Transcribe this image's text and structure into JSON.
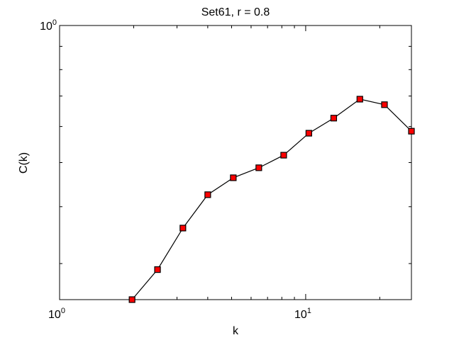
{
  "chart_data": {
    "type": "line",
    "title": "Set61, r = 0.8",
    "xlabel": "k",
    "ylabel": "C(k)",
    "x": [
      1.97,
      2.5,
      3.17,
      4.0,
      5.08,
      6.45,
      8.14,
      10.3,
      13.0,
      16.6,
      20.9,
      26.9
    ],
    "series": [
      {
        "name": "C(k)",
        "color": "#ff0000",
        "line_color": "#000000",
        "values": [
          0.25,
          0.291,
          0.359,
          0.425,
          0.463,
          0.487,
          0.519,
          0.58,
          0.626,
          0.689,
          0.67,
          0.586
        ]
      }
    ],
    "xlim": [
      1,
      26.9
    ],
    "ylim": [
      0.25,
      1
    ],
    "xticks": [
      {
        "value": 1,
        "label": "10^0"
      },
      {
        "value": 10,
        "label": "10^1"
      }
    ],
    "yticks": [
      {
        "value": 1,
        "label": "10^0"
      }
    ],
    "xminorticks": [
      2,
      3,
      4,
      5,
      6,
      7,
      8,
      9,
      20
    ],
    "yminorticks": [
      0.3,
      0.4,
      0.5,
      0.6,
      0.7,
      0.8,
      0.9
    ],
    "xscale": "log",
    "yscale": "log",
    "grid": false
  }
}
